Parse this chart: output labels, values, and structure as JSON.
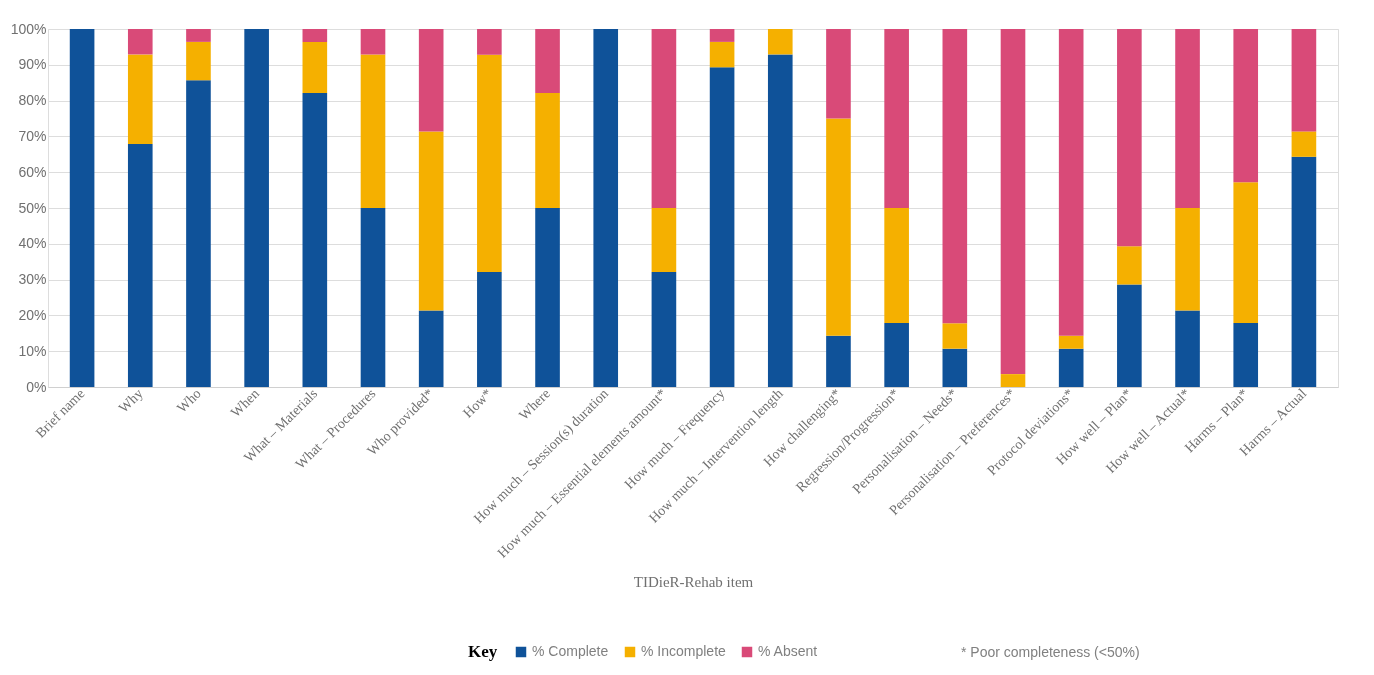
{
  "chart_data": {
    "type": "bar",
    "stacked": true,
    "xlabel": "TIDieR-Rehab item",
    "legend_title": "Key",
    "legend": "bottom",
    "grid": "y",
    "categories": [
      "Brief name",
      "Why",
      "Who",
      "When",
      "What – Materials",
      "What – Procedures",
      "Who provided*",
      "How*",
      "Where",
      "How much – Session(s) duration",
      "How much – Essential elements amount*",
      "How much – Frequency",
      "How much – Intervention length",
      "How challenging*",
      "Regression/Progression*",
      "Personalisation – Needs*",
      "Personalisation – Preferences*",
      "Protocol deviations*",
      "How well – Plan*",
      "How well – Actual*",
      "Harms – Plan*",
      "Harms – Actual"
    ],
    "series": [
      {
        "name": "% Complete",
        "color": "#0f5299",
        "values": [
          100,
          67.9,
          85.7,
          100,
          82.1,
          50,
          21.4,
          32.1,
          50,
          100,
          32.1,
          89.3,
          92.9,
          14.3,
          17.9,
          10.7,
          0,
          10.7,
          28.6,
          21.4,
          17.9,
          64.3
        ]
      },
      {
        "name": "% Incomplete",
        "color": "#f5b000",
        "values": [
          0,
          25,
          10.7,
          0,
          14.3,
          42.9,
          50,
          60.7,
          32.1,
          0,
          17.9,
          7.1,
          7.1,
          60.7,
          32.1,
          7.1,
          3.6,
          3.6,
          10.7,
          28.6,
          39.3,
          7.1
        ]
      },
      {
        "name": "% Absent",
        "color": "#d94a78",
        "values": [
          0,
          7.1,
          3.6,
          0,
          3.6,
          7.1,
          28.6,
          7.2,
          17.9,
          0,
          50,
          3.6,
          0,
          25,
          50,
          82.2,
          96.4,
          85.7,
          60.7,
          50,
          42.8,
          28.6
        ]
      }
    ],
    "ylim": [
      0,
      100
    ],
    "yticks": [
      {
        "value": 0,
        "label": "0%"
      },
      {
        "value": 10,
        "label": "10%"
      },
      {
        "value": 20,
        "label": "20%"
      },
      {
        "value": 30,
        "label": "30%"
      },
      {
        "value": 40,
        "label": "40%"
      },
      {
        "value": 50,
        "label": "50%"
      },
      {
        "value": 60,
        "label": "60%"
      },
      {
        "value": 70,
        "label": "70%"
      },
      {
        "value": 80,
        "label": "80%"
      },
      {
        "value": 90,
        "label": "90%"
      },
      {
        "value": 100,
        "label": "100%"
      }
    ],
    "annotations": [
      "* Poor completeness (<50%)"
    ]
  }
}
